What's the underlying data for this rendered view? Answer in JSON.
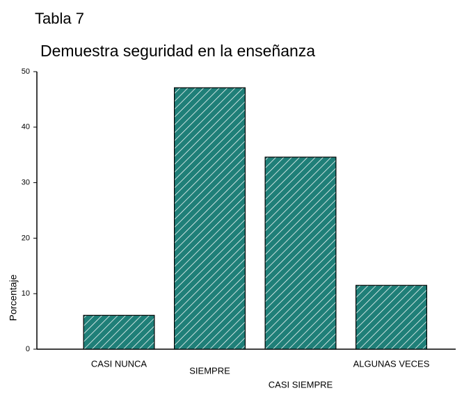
{
  "chart_data": {
    "type": "bar",
    "title": "Tabla 7",
    "subtitle": "Demuestra seguridad en la enseñanza",
    "y_label": "Porcentaje",
    "categories": [
      "CASI NUNCA",
      "SIEMPRE",
      "CASI SIEMPRE",
      "ALGUNAS VECES"
    ],
    "values": [
      6.1,
      47.1,
      34.6,
      11.5
    ],
    "color": "#1f7f78",
    "ylim": [
      0,
      50
    ],
    "yticks": [
      0,
      10,
      20,
      30,
      40,
      50
    ],
    "grid": false
  }
}
